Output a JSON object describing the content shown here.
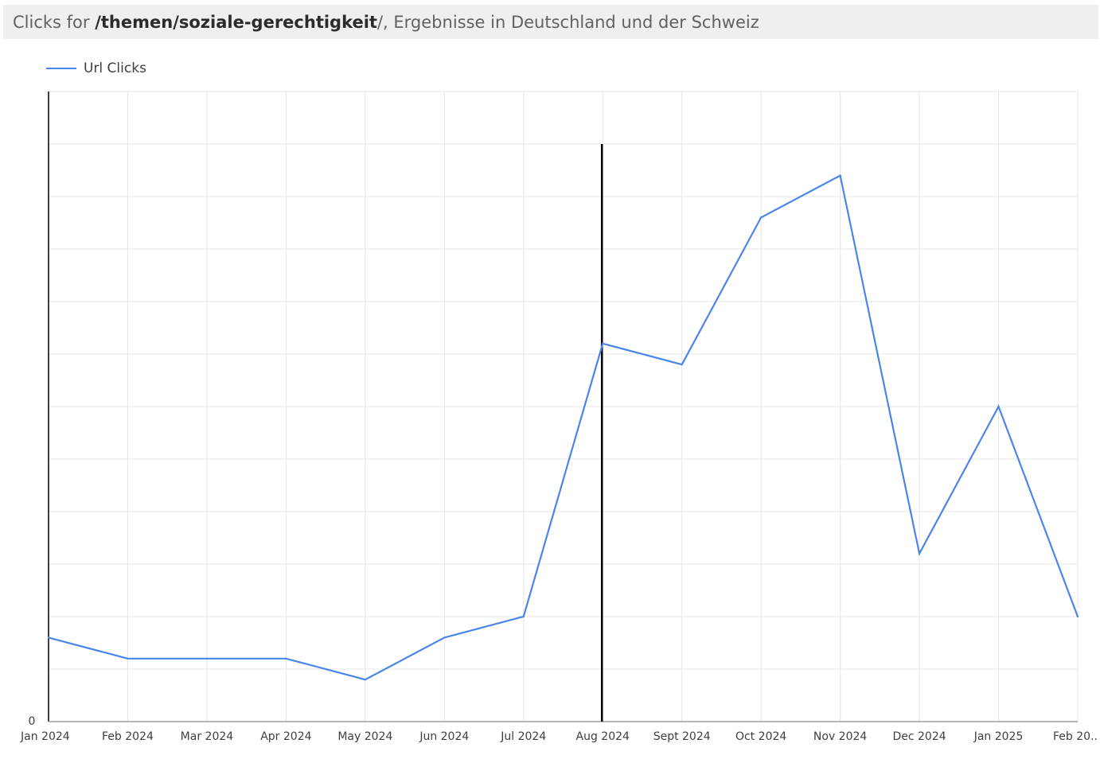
{
  "header": {
    "title_prefix": "Clicks for ",
    "title_path": "/themen/soziale-gerechtigkeit",
    "title_suffix": "/, Ergebnisse in Deutschland und der Schweiz",
    "background": "#eeeff1"
  },
  "chart_data": {
    "type": "line",
    "categories": [
      "Jan 2024",
      "Feb 2024",
      "Mar 2024",
      "Apr 2024",
      "May 2024",
      "Jun 2024",
      "Jul 2024",
      "Aug 2024",
      "Sept 2024",
      "Oct 2024",
      "Nov 2024",
      "Dec 2024",
      "Jan 2025",
      "Feb 20.."
    ],
    "series": [
      {
        "name": "Url Clicks",
        "color": "#4a86e8",
        "values": [
          1.6,
          1.2,
          1.2,
          1.2,
          0.8,
          1.6,
          2.0,
          7.2,
          6.8,
          9.6,
          10.4,
          3.2,
          6.0,
          2.0
        ]
      }
    ],
    "y_min_label": "0",
    "ylim": [
      0,
      12
    ],
    "grid": true,
    "legend_position": "top-left",
    "marker": {
      "at_category": "Aug 2024",
      "color": "#000000"
    }
  }
}
